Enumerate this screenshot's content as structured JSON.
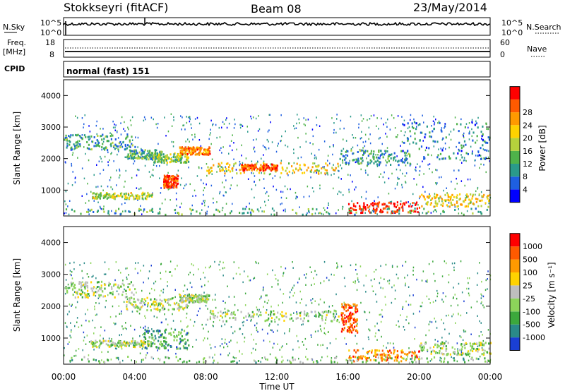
{
  "header": {
    "station": "Stokkseyri (fitACF)",
    "beam": "Beam 08",
    "date": "23/May/2014"
  },
  "nsky_panel": {
    "left_label": "N.Sky",
    "right_label": "N.Search",
    "left_ticks": [
      "10^5",
      "10^0"
    ],
    "right_ticks": [
      "10^5",
      "10^0"
    ]
  },
  "freq_panel": {
    "left_label_line1": "Freq.",
    "left_label_line2": "[MHz]",
    "right_label": "Nave",
    "left_ticks": [
      "18",
      "8"
    ],
    "right_ticks": [
      "60",
      "0"
    ]
  },
  "cpid_panel": {
    "label": "CPID",
    "text": "normal (fast) 151"
  },
  "x_axis": {
    "ticks": [
      "00:00",
      "04:00",
      "08:00",
      "12:00",
      "16:00",
      "20:00",
      "00:00"
    ],
    "label": "Time UT"
  },
  "chart_data": [
    {
      "type": "heatmap",
      "name": "power",
      "ylabel": "Slant Range [km]",
      "yticks": [
        "1000",
        "2000",
        "3000",
        "4000"
      ],
      "ylim": [
        180,
        4500
      ],
      "xlim_hours": [
        0,
        24
      ],
      "colorbar": {
        "label": "Power [dB]",
        "ticks": [
          "4",
          "8",
          "12",
          "16",
          "20",
          "24",
          "28"
        ],
        "colors": [
          "#0000ff",
          "#1e5fe0",
          "#2a9a8a",
          "#4fb24a",
          "#b5d23c",
          "#ffd200",
          "#ff9a00",
          "#ff5a00",
          "#ff0000"
        ]
      },
      "bands": [
        {
          "t": [
            0.0,
            4.0
          ],
          "r": [
            2300,
            2800
          ],
          "level": 0.3
        },
        {
          "t": [
            3.5,
            5.5
          ],
          "r": [
            2000,
            2300
          ],
          "level": 0.35
        },
        {
          "t": [
            5.0,
            7.0
          ],
          "r": [
            1900,
            2200
          ],
          "level": 0.45
        },
        {
          "t": [
            5.6,
            6.4
          ],
          "r": [
            1100,
            1500
          ],
          "level": 0.9
        },
        {
          "t": [
            6.5,
            8.2
          ],
          "r": [
            2150,
            2400
          ],
          "level": 0.75
        },
        {
          "t": [
            8.0,
            15.5
          ],
          "r": [
            1550,
            1900
          ],
          "level": 0.6
        },
        {
          "t": [
            10.0,
            12.0
          ],
          "r": [
            1650,
            1850
          ],
          "level": 0.85
        },
        {
          "t": [
            15.5,
            19.5
          ],
          "r": [
            1800,
            2300
          ],
          "level": 0.3
        },
        {
          "t": [
            19.0,
            24.0
          ],
          "r": [
            2000,
            3200
          ],
          "level": 0.25
        },
        {
          "t": [
            1.5,
            5.0
          ],
          "r": [
            750,
            950
          ],
          "level": 0.5
        },
        {
          "t": [
            16.0,
            20.0
          ],
          "r": [
            300,
            650
          ],
          "level": 0.95
        },
        {
          "t": [
            0.0,
            24.0
          ],
          "r": [
            250,
            450
          ],
          "level": 0.35
        },
        {
          "t": [
            20.0,
            24.0
          ],
          "r": [
            500,
            900
          ],
          "level": 0.6
        }
      ]
    },
    {
      "type": "heatmap",
      "name": "velocity",
      "ylabel": "Slant Range [km]",
      "yticks": [
        "1000",
        "2000",
        "3000",
        "4000"
      ],
      "ylim": [
        180,
        4500
      ],
      "xlim_hours": [
        0,
        24
      ],
      "colorbar": {
        "label": "Velocity [m s⁻¹]",
        "ticks": [
          "1000",
          "500",
          "100",
          "25",
          "-25",
          "-100",
          "-500",
          "-1000"
        ],
        "colors": [
          "#1a3fd4",
          "#2a8a88",
          "#3ca83c",
          "#8cd45a",
          "#bebebe",
          "#ffd200",
          "#ff9a00",
          "#ff5a00",
          "#ff0000"
        ]
      },
      "bands": [
        {
          "t": [
            0.0,
            4.0
          ],
          "r": [
            2300,
            2800
          ],
          "level": 0.45
        },
        {
          "t": [
            3.5,
            7.0
          ],
          "r": [
            1900,
            2300
          ],
          "level": 0.45
        },
        {
          "t": [
            6.5,
            8.2
          ],
          "r": [
            2150,
            2400
          ],
          "level": 0.45
        },
        {
          "t": [
            8.0,
            15.5
          ],
          "r": [
            1550,
            1900
          ],
          "level": 0.45
        },
        {
          "t": [
            15.6,
            16.5
          ],
          "r": [
            1200,
            2100
          ],
          "level": 0.85
        },
        {
          "t": [
            16.0,
            20.0
          ],
          "r": [
            300,
            650
          ],
          "level": 0.75
        },
        {
          "t": [
            1.5,
            5.0
          ],
          "r": [
            750,
            950
          ],
          "level": 0.45
        },
        {
          "t": [
            4.5,
            7.0
          ],
          "r": [
            700,
            1300
          ],
          "level": 0.25
        },
        {
          "t": [
            0.0,
            24.0
          ],
          "r": [
            250,
            450
          ],
          "level": 0.35
        },
        {
          "t": [
            20.0,
            24.0
          ],
          "r": [
            500,
            900
          ],
          "level": 0.45
        }
      ]
    }
  ]
}
